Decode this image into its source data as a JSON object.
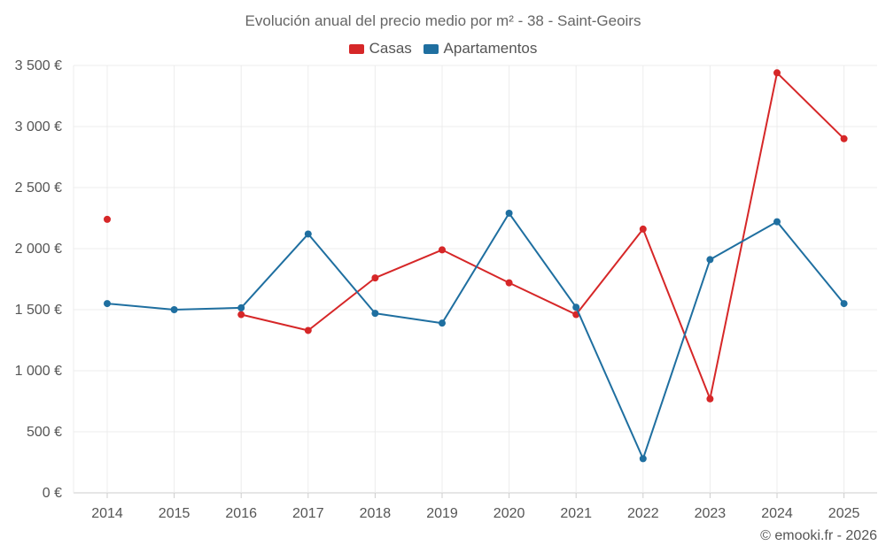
{
  "chart_data": {
    "type": "line",
    "title": "Evolución anual del precio medio por m² - 38 - Saint-Geoirs",
    "categories": [
      "2014",
      "2015",
      "2016",
      "2017",
      "2018",
      "2019",
      "2020",
      "2021",
      "2022",
      "2023",
      "2024",
      "2025"
    ],
    "ylim": [
      0,
      3500
    ],
    "yticks": [
      0,
      500,
      1000,
      1500,
      2000,
      2500,
      3000,
      3500
    ],
    "ytick_labels": [
      "0 €",
      "500 €",
      "1 000 €",
      "1 500 €",
      "2 000 €",
      "2 500 €",
      "3 000 €",
      "3 500 €"
    ],
    "grid": true,
    "legend_position": "top-center",
    "series": [
      {
        "name": "Casas",
        "color": "#d62728",
        "values": [
          2240,
          null,
          1460,
          1330,
          1760,
          1990,
          1720,
          1460,
          2160,
          770,
          3440,
          2900
        ]
      },
      {
        "name": "Apartamentos",
        "color": "#1f6fa0",
        "values": [
          1550,
          1500,
          1515,
          2120,
          1470,
          1390,
          2290,
          1520,
          280,
          1910,
          2220,
          1550
        ]
      }
    ]
  },
  "credit": "© emooki.fr - 2026"
}
